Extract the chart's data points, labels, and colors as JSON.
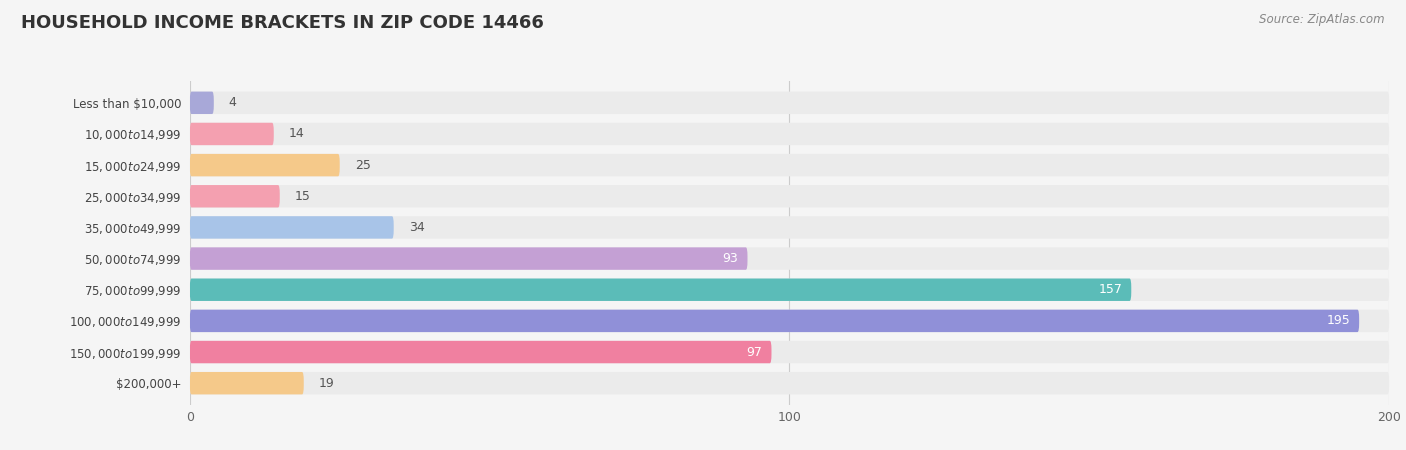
{
  "title": "HOUSEHOLD INCOME BRACKETS IN ZIP CODE 14466",
  "source": "Source: ZipAtlas.com",
  "categories": [
    "Less than $10,000",
    "$10,000 to $14,999",
    "$15,000 to $24,999",
    "$25,000 to $34,999",
    "$35,000 to $49,999",
    "$50,000 to $74,999",
    "$75,000 to $99,999",
    "$100,000 to $149,999",
    "$150,000 to $199,999",
    "$200,000+"
  ],
  "values": [
    4,
    14,
    25,
    15,
    34,
    93,
    157,
    195,
    97,
    19
  ],
  "bar_colors": [
    "#a8a8d8",
    "#f4a0b0",
    "#f5c98a",
    "#f4a0b0",
    "#a8c4e8",
    "#c4a0d4",
    "#5bbcb8",
    "#9090d8",
    "#f080a0",
    "#f5c98a"
  ],
  "xlim": [
    0,
    200
  ],
  "background_color": "#f5f5f5",
  "bar_background_color": "#ebebeb",
  "title_color": "#333333",
  "label_color": "#444444",
  "value_color_inside": "#ffffff",
  "value_color_outside": "#555555",
  "source_color": "#888888",
  "title_fontsize": 13,
  "label_fontsize": 8.5,
  "value_fontsize": 9
}
